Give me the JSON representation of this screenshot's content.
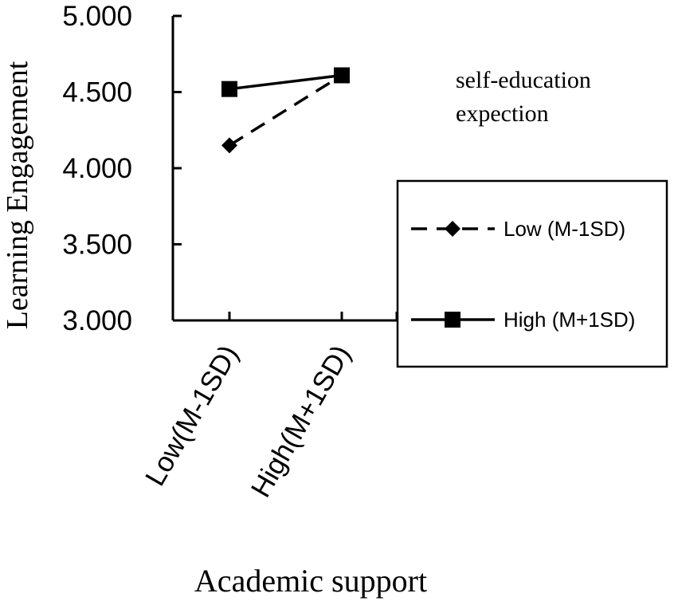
{
  "chart_data": {
    "type": "line",
    "title": "",
    "xlabel": "Academic support",
    "ylabel": "Learning Engagement",
    "categories": [
      "Low(M-1SD)",
      "High(M+1SD)"
    ],
    "ylim": [
      3.0,
      5.0
    ],
    "yticks": [
      "3.000",
      "3.500",
      "4.000",
      "4.500",
      "5.000"
    ],
    "ytick_values": [
      3.0,
      3.5,
      4.0,
      4.5,
      5.0
    ],
    "legend_title": "self-education expection",
    "legend_title_lines": [
      "self-education",
      "expection"
    ],
    "legend_placement": "right",
    "series": [
      {
        "name": "Low (M-1SD)",
        "values": [
          4.15,
          4.61
        ],
        "line": "dashed",
        "marker": "diamond"
      },
      {
        "name": "High (M+1SD)",
        "values": [
          4.52,
          4.61
        ],
        "line": "solid",
        "marker": "square"
      }
    ],
    "grid": false
  }
}
